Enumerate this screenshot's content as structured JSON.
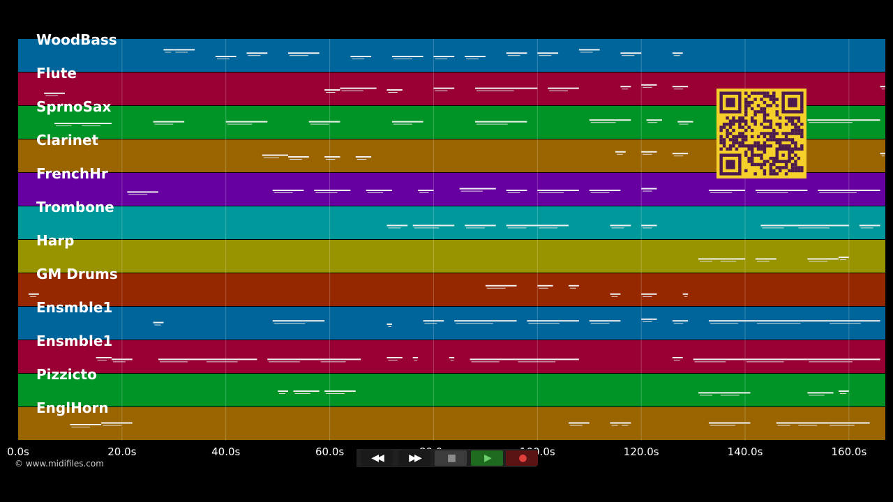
{
  "app": {
    "credit": "© www.midifiles.com"
  },
  "timeline": {
    "x_min": 0,
    "x_max": 167,
    "ticks": [
      {
        "t": 0,
        "label": "0.0s"
      },
      {
        "t": 20,
        "label": "20.0s"
      },
      {
        "t": 40,
        "label": "40.0s"
      },
      {
        "t": 60,
        "label": "60.0s"
      },
      {
        "t": 80,
        "label": "80.0s"
      },
      {
        "t": 100,
        "label": "100.0s"
      },
      {
        "t": 120,
        "label": "120.0s"
      },
      {
        "t": 140,
        "label": "140.0s"
      },
      {
        "t": 160,
        "label": "160.0s"
      }
    ]
  },
  "tracks": [
    {
      "name": "WoodBass",
      "color": "#00659b"
    },
    {
      "name": "Flute",
      "color": "#990033"
    },
    {
      "name": "SprnoSax",
      "color": "#009426"
    },
    {
      "name": "Clarinet",
      "color": "#9a6400"
    },
    {
      "name": "FrenchHr",
      "color": "#6700a0"
    },
    {
      "name": "Trombone",
      "color": "#00989a"
    },
    {
      "name": "Harp",
      "color": "#989400"
    },
    {
      "name": "GM Drums",
      "color": "#962800"
    },
    {
      "name": "Ensmble1",
      "color": "#00659b"
    },
    {
      "name": "Ensmble1",
      "color": "#990033"
    },
    {
      "name": "Pizzicto",
      "color": "#009426"
    },
    {
      "name": "EnglHorn",
      "color": "#9a6400"
    }
  ],
  "notes": [
    [
      [
        28,
        30,
        0.3
      ],
      [
        30,
        34,
        0.3
      ],
      [
        38,
        42,
        0.5
      ],
      [
        44,
        48,
        0.4
      ],
      [
        52,
        58,
        0.4
      ],
      [
        64,
        68,
        0.5
      ],
      [
        72,
        78,
        0.5
      ],
      [
        80,
        84,
        0.5
      ],
      [
        86,
        90,
        0.5
      ],
      [
        94,
        98,
        0.4
      ],
      [
        100,
        104,
        0.4
      ],
      [
        108,
        112,
        0.3
      ],
      [
        116,
        120,
        0.4
      ],
      [
        126,
        128,
        0.4
      ]
    ],
    [
      [
        5,
        9,
        0.6
      ],
      [
        59,
        62,
        0.5
      ],
      [
        62,
        69,
        0.45
      ],
      [
        71,
        74,
        0.5
      ],
      [
        80,
        84,
        0.45
      ],
      [
        88,
        100,
        0.45
      ],
      [
        102,
        108,
        0.45
      ],
      [
        116,
        118,
        0.4
      ],
      [
        120,
        123,
        0.35
      ],
      [
        126,
        129,
        0.4
      ],
      [
        166,
        167,
        0.4
      ]
    ],
    [
      [
        7,
        12,
        0.5
      ],
      [
        12,
        18,
        0.5
      ],
      [
        26,
        32,
        0.45
      ],
      [
        40,
        48,
        0.45
      ],
      [
        56,
        62,
        0.45
      ],
      [
        72,
        78,
        0.45
      ],
      [
        88,
        98,
        0.45
      ],
      [
        110,
        118,
        0.4
      ],
      [
        121,
        124,
        0.4
      ],
      [
        127,
        130,
        0.45
      ],
      [
        136,
        150,
        0.4
      ],
      [
        152,
        166,
        0.4
      ]
    ],
    [
      [
        47,
        52,
        0.45
      ],
      [
        52,
        56,
        0.5
      ],
      [
        59,
        62,
        0.5
      ],
      [
        65,
        68,
        0.5
      ],
      [
        115,
        117,
        0.35
      ],
      [
        120,
        123,
        0.35
      ],
      [
        126,
        129,
        0.4
      ],
      [
        166,
        167,
        0.4
      ]
    ],
    [
      [
        21,
        27,
        0.55
      ],
      [
        49,
        55,
        0.5
      ],
      [
        57,
        64,
        0.5
      ],
      [
        67,
        72,
        0.5
      ],
      [
        77,
        80,
        0.5
      ],
      [
        85,
        92,
        0.45
      ],
      [
        94,
        98,
        0.5
      ],
      [
        100,
        108,
        0.5
      ],
      [
        110,
        116,
        0.5
      ],
      [
        120,
        123,
        0.45
      ],
      [
        133,
        140,
        0.5
      ],
      [
        142,
        152,
        0.5
      ],
      [
        154,
        166,
        0.5
      ]
    ],
    [
      [
        71,
        75,
        0.55
      ],
      [
        76,
        84,
        0.55
      ],
      [
        86,
        92,
        0.55
      ],
      [
        94,
        100,
        0.55
      ],
      [
        100,
        106,
        0.55
      ],
      [
        114,
        118,
        0.55
      ],
      [
        120,
        123,
        0.55
      ],
      [
        143,
        150,
        0.55
      ],
      [
        150,
        160,
        0.55
      ],
      [
        162,
        166,
        0.55
      ]
    ],
    [
      [
        131,
        135,
        0.55
      ],
      [
        135,
        140,
        0.55
      ],
      [
        142,
        146,
        0.55
      ],
      [
        152,
        158,
        0.55
      ],
      [
        158,
        160,
        0.5
      ]
    ],
    [
      [
        2,
        4,
        0.6
      ],
      [
        90,
        96,
        0.35
      ],
      [
        100,
        103,
        0.35
      ],
      [
        106,
        108,
        0.35
      ],
      [
        114,
        116,
        0.6
      ],
      [
        120,
        123,
        0.6
      ],
      [
        128,
        129,
        0.6
      ]
    ],
    [
      [
        26,
        28,
        0.45
      ],
      [
        49,
        59,
        0.4
      ],
      [
        71,
        72,
        0.5
      ],
      [
        78,
        82,
        0.4
      ],
      [
        84,
        96,
        0.4
      ],
      [
        98,
        108,
        0.4
      ],
      [
        110,
        116,
        0.4
      ],
      [
        120,
        123,
        0.35
      ],
      [
        126,
        129,
        0.4
      ],
      [
        133,
        142,
        0.4
      ],
      [
        142,
        156,
        0.4
      ],
      [
        156,
        166,
        0.4
      ]
    ],
    [
      [
        15,
        18,
        0.5
      ],
      [
        18,
        22,
        0.55
      ],
      [
        27,
        36,
        0.55
      ],
      [
        36,
        46,
        0.55
      ],
      [
        48,
        58,
        0.55
      ],
      [
        58,
        66,
        0.55
      ],
      [
        71,
        74,
        0.5
      ],
      [
        76,
        77,
        0.5
      ],
      [
        83,
        84,
        0.5
      ],
      [
        87,
        96,
        0.55
      ],
      [
        96,
        108,
        0.55
      ],
      [
        126,
        128,
        0.5
      ],
      [
        130,
        140,
        0.55
      ],
      [
        140,
        152,
        0.55
      ],
      [
        152,
        166,
        0.55
      ]
    ],
    [
      [
        50,
        52,
        0.5
      ],
      [
        53,
        58,
        0.5
      ],
      [
        59,
        65,
        0.5
      ],
      [
        131,
        135,
        0.55
      ],
      [
        135,
        141,
        0.55
      ],
      [
        152,
        157,
        0.55
      ],
      [
        158,
        160,
        0.5
      ]
    ],
    [
      [
        10,
        16,
        0.5
      ],
      [
        16,
        22,
        0.45
      ],
      [
        106,
        110,
        0.45
      ],
      [
        114,
        116,
        0.45
      ],
      [
        116,
        118,
        0.45
      ],
      [
        133,
        141,
        0.45
      ],
      [
        146,
        150,
        0.45
      ],
      [
        150,
        156,
        0.45
      ],
      [
        156,
        164,
        0.45
      ]
    ]
  ],
  "transport": {
    "buttons": [
      {
        "name": "rewind-button",
        "icon": "rewind-icon",
        "glyph": "◀◀",
        "bg": "#1a1a1a",
        "color": "#ffffff"
      },
      {
        "name": "fast-forward-button",
        "icon": "fast-forward-icon",
        "glyph": "▶▶",
        "bg": "#1a1a1a",
        "color": "#ffffff"
      },
      {
        "name": "stop-button",
        "icon": "stop-icon",
        "glyph": "■",
        "bg": "#3c3c3c",
        "color": "#8c8c8c"
      },
      {
        "name": "play-button",
        "icon": "play-icon",
        "glyph": "▶",
        "bg": "#1e6a1e",
        "color": "#6bd06b"
      },
      {
        "name": "record-button",
        "icon": "record-icon",
        "glyph": "●",
        "bg": "#5a1414",
        "color": "#e0403c"
      }
    ]
  },
  "qr": {
    "background": "#f5d02a",
    "module_color": "#4b1a4e"
  }
}
